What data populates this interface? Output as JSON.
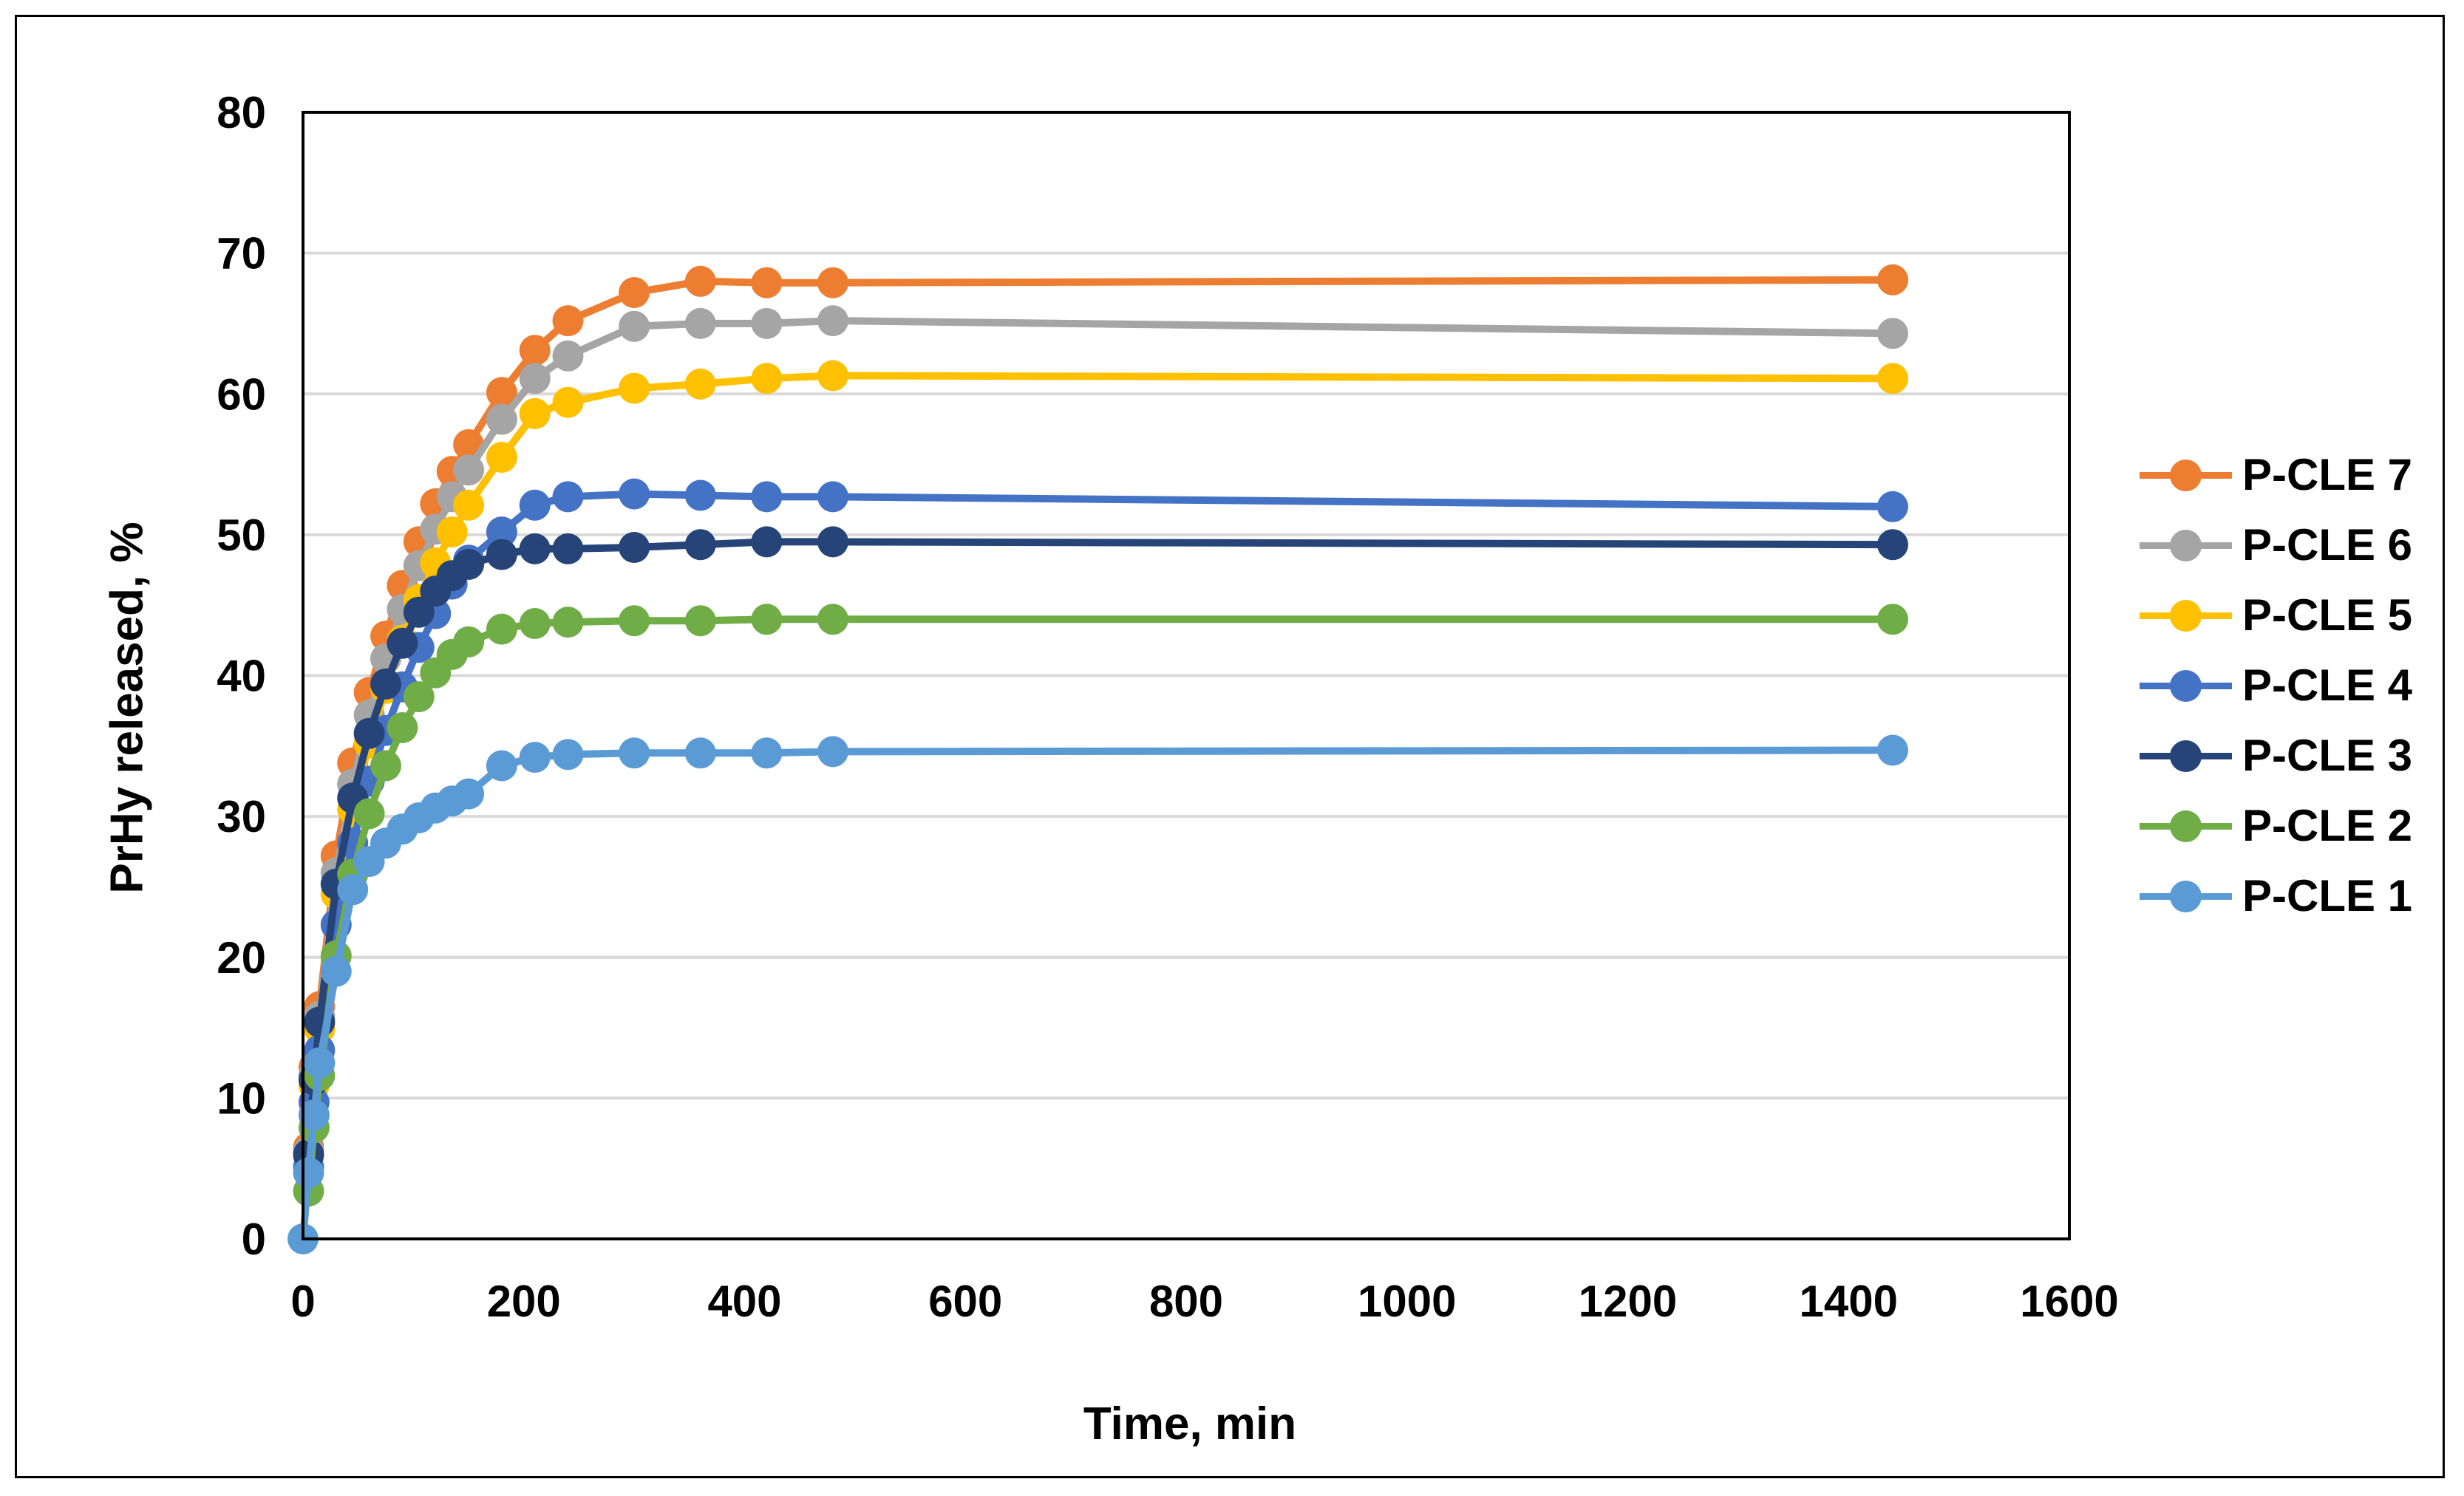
{
  "figure": {
    "background": "#ffffff",
    "frame_color": "#000000"
  },
  "chart_data": {
    "type": "line",
    "title": "",
    "xlabel": "Time, min",
    "ylabel": "PrHy released, %",
    "xlim": [
      0,
      1600
    ],
    "ylim": [
      0,
      80
    ],
    "x_ticks": [
      "0",
      "200",
      "400",
      "600",
      "800",
      "1000",
      "1200",
      "1400",
      "1600"
    ],
    "x_tick_values": [
      0,
      200,
      400,
      600,
      800,
      1000,
      1200,
      1400,
      1600
    ],
    "y_ticks": [
      "0",
      "10",
      "20",
      "30",
      "40",
      "50",
      "60",
      "70",
      "80"
    ],
    "y_tick_values": [
      0,
      10,
      20,
      30,
      40,
      50,
      60,
      70,
      80
    ],
    "grid": "horizontal",
    "gridline_color": "#d9d9d9",
    "axis_color": "#000000",
    "legend_position": "right",
    "marker": "circle",
    "series": [
      {
        "name": "P-CLE 7",
        "color": "#ED7D31",
        "points": [
          [
            5,
            6.5
          ],
          [
            10,
            12.2
          ],
          [
            15,
            16.5
          ],
          [
            30,
            27.2
          ],
          [
            45,
            33.8
          ],
          [
            60,
            38.8
          ],
          [
            75,
            42.8
          ],
          [
            90,
            46.4
          ],
          [
            105,
            49.5
          ],
          [
            120,
            52.2
          ],
          [
            135,
            54.5
          ],
          [
            150,
            56.4
          ],
          [
            180,
            60.1
          ],
          [
            210,
            63.1
          ],
          [
            240,
            65.2
          ],
          [
            300,
            67.2
          ],
          [
            360,
            68.0
          ],
          [
            420,
            67.9
          ],
          [
            480,
            67.9
          ],
          [
            1440,
            68.1
          ]
        ]
      },
      {
        "name": "P-CLE 6",
        "color": "#A5A5A5",
        "points": [
          [
            5,
            6.2
          ],
          [
            10,
            11.6
          ],
          [
            15,
            15.8
          ],
          [
            30,
            26.0
          ],
          [
            45,
            32.3
          ],
          [
            60,
            37.2
          ],
          [
            75,
            41.2
          ],
          [
            90,
            44.7
          ],
          [
            105,
            47.8
          ],
          [
            120,
            50.4
          ],
          [
            135,
            52.7
          ],
          [
            150,
            54.6
          ],
          [
            180,
            58.2
          ],
          [
            210,
            61.1
          ],
          [
            240,
            62.7
          ],
          [
            300,
            64.8
          ],
          [
            360,
            65.0
          ],
          [
            420,
            65.0
          ],
          [
            480,
            65.2
          ],
          [
            1440,
            64.3
          ]
        ]
      },
      {
        "name": "P-CLE 5",
        "color": "#FFC000",
        "points": [
          [
            5,
            5.8
          ],
          [
            10,
            10.9
          ],
          [
            15,
            14.9
          ],
          [
            30,
            24.5
          ],
          [
            45,
            30.5
          ],
          [
            60,
            35.2
          ],
          [
            75,
            39.1
          ],
          [
            90,
            42.5
          ],
          [
            105,
            45.4
          ],
          [
            120,
            48.0
          ],
          [
            135,
            50.2
          ],
          [
            150,
            52.1
          ],
          [
            180,
            55.5
          ],
          [
            210,
            58.6
          ],
          [
            240,
            59.4
          ],
          [
            300,
            60.4
          ],
          [
            360,
            60.7
          ],
          [
            420,
            61.1
          ],
          [
            480,
            61.3
          ],
          [
            1440,
            61.1
          ]
        ]
      },
      {
        "name": "P-CLE 4",
        "color": "#4472C4",
        "points": [
          [
            5,
            5.1
          ],
          [
            10,
            9.7
          ],
          [
            15,
            13.4
          ],
          [
            30,
            22.3
          ],
          [
            45,
            28.1
          ],
          [
            60,
            32.5
          ],
          [
            75,
            36.1
          ],
          [
            90,
            39.2
          ],
          [
            105,
            42.0
          ],
          [
            120,
            44.4
          ],
          [
            135,
            46.5
          ],
          [
            150,
            48.2
          ],
          [
            180,
            50.2
          ],
          [
            210,
            52.1
          ],
          [
            240,
            52.7
          ],
          [
            300,
            52.9
          ],
          [
            360,
            52.8
          ],
          [
            420,
            52.7
          ],
          [
            480,
            52.7
          ],
          [
            1440,
            52.0
          ]
        ]
      },
      {
        "name": "P-CLE 3",
        "color": "#264478",
        "points": [
          [
            5,
            6.0
          ],
          [
            10,
            11.3
          ],
          [
            15,
            15.4
          ],
          [
            30,
            25.2
          ],
          [
            45,
            31.3
          ],
          [
            60,
            35.9
          ],
          [
            75,
            39.4
          ],
          [
            90,
            42.3
          ],
          [
            105,
            44.5
          ],
          [
            120,
            46.0
          ],
          [
            135,
            47.1
          ],
          [
            150,
            47.9
          ],
          [
            180,
            48.6
          ],
          [
            210,
            49.0
          ],
          [
            240,
            49.0
          ],
          [
            300,
            49.1
          ],
          [
            360,
            49.3
          ],
          [
            420,
            49.5
          ],
          [
            480,
            49.5
          ],
          [
            1440,
            49.3
          ]
        ]
      },
      {
        "name": "P-CLE 2",
        "color": "#70AD47",
        "points": [
          [
            5,
            3.4
          ],
          [
            10,
            7.9
          ],
          [
            15,
            11.6
          ],
          [
            30,
            20.1
          ],
          [
            45,
            25.9
          ],
          [
            60,
            30.2
          ],
          [
            75,
            33.6
          ],
          [
            90,
            36.3
          ],
          [
            105,
            38.5
          ],
          [
            120,
            40.2
          ],
          [
            135,
            41.5
          ],
          [
            150,
            42.4
          ],
          [
            180,
            43.3
          ],
          [
            210,
            43.7
          ],
          [
            240,
            43.8
          ],
          [
            300,
            43.9
          ],
          [
            360,
            43.9
          ],
          [
            420,
            44.0
          ],
          [
            480,
            44.0
          ],
          [
            1440,
            44.0
          ]
        ]
      },
      {
        "name": "P-CLE 1",
        "color": "#5B9BD5",
        "points": [
          [
            0,
            0.0
          ],
          [
            5,
            4.7
          ],
          [
            10,
            8.8
          ],
          [
            15,
            12.5
          ],
          [
            30,
            19.0
          ],
          [
            45,
            24.8
          ],
          [
            60,
            26.8
          ],
          [
            75,
            28.1
          ],
          [
            90,
            29.1
          ],
          [
            105,
            29.9
          ],
          [
            120,
            30.6
          ],
          [
            135,
            31.1
          ],
          [
            150,
            31.6
          ],
          [
            180,
            33.6
          ],
          [
            210,
            34.2
          ],
          [
            240,
            34.4
          ],
          [
            300,
            34.5
          ],
          [
            360,
            34.5
          ],
          [
            420,
            34.5
          ],
          [
            480,
            34.6
          ],
          [
            1440,
            34.7
          ]
        ]
      }
    ]
  }
}
